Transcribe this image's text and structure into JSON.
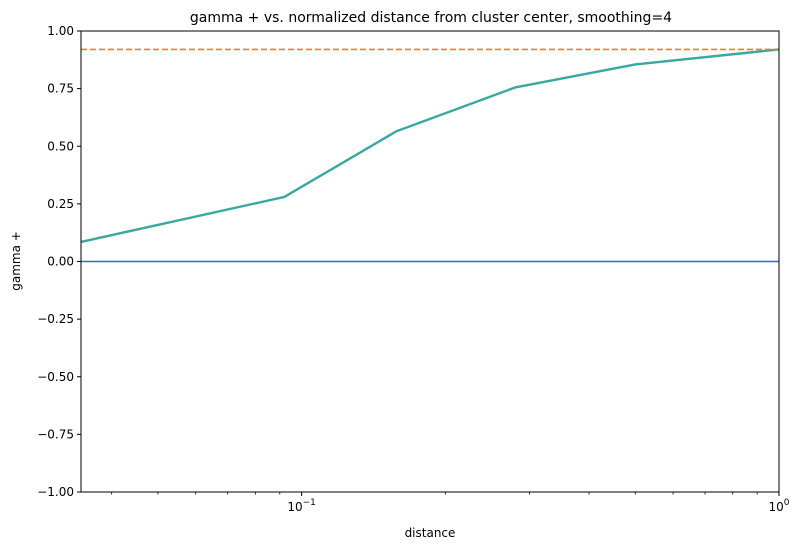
{
  "chart_data": {
    "type": "line",
    "title": "gamma + vs. normalized distance from cluster center, smoothing=4",
    "xlabel": "distance",
    "ylabel": "gamma +",
    "xscale": "log",
    "xlim": [
      0.0345,
      1.0
    ],
    "ylim": [
      -1.0,
      1.0
    ],
    "grid": false,
    "y_ticks": [
      -1.0,
      -0.75,
      -0.5,
      -0.25,
      0.0,
      0.25,
      0.5,
      0.75,
      1.0
    ],
    "y_tick_labels": [
      "−1.00",
      "−0.75",
      "−0.50",
      "−0.25",
      "0.00",
      "0.25",
      "0.50",
      "0.75",
      "1.00"
    ],
    "x_major_ticks": [
      {
        "value": 0.1,
        "base": "10",
        "exp": "−1"
      },
      {
        "value": 1.0,
        "base": "10",
        "exp": "0"
      }
    ],
    "series": [
      {
        "x": [
          0.0345,
          0.092,
          0.158,
          0.28,
          0.5,
          1.0
        ],
        "y": [
          0.085,
          0.28,
          0.565,
          0.755,
          0.855,
          0.92
        ],
        "color": "#3aa7a0",
        "style": "solid"
      },
      {
        "x": [
          0.0345,
          1.0
        ],
        "y": [
          0.92,
          0.92
        ],
        "color": "#ff7f0e",
        "style": "dashed"
      },
      {
        "x": [
          0.0345,
          1.0
        ],
        "y": [
          0.0,
          0.0
        ],
        "color": "#1f77b4",
        "style": "solid"
      }
    ]
  }
}
